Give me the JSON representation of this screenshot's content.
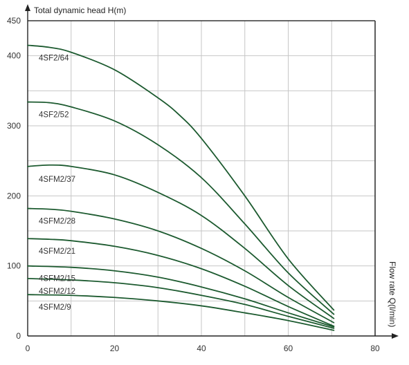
{
  "chart_data": {
    "type": "line",
    "title": "",
    "ylabel": "Total dynamic head H(m)",
    "xlabel": "Flow rate Q(l/min)",
    "xlim": [
      0,
      80
    ],
    "ylim": [
      0,
      450
    ],
    "x_ticks": [
      0,
      20,
      40,
      60,
      80
    ],
    "y_ticks": [
      0,
      100,
      200,
      300,
      400,
      450
    ],
    "grid": true,
    "legend": "none",
    "line_color": "#1c5a2f",
    "series": [
      {
        "name": "4SF2/64",
        "x": [
          0,
          5,
          10,
          20,
          30,
          35,
          40,
          50,
          60,
          70.5
        ],
        "values": [
          415,
          412,
          405,
          380,
          340,
          315,
          282,
          200,
          110,
          37
        ]
      },
      {
        "name": "4SF2/52",
        "x": [
          0,
          5,
          10,
          20,
          30,
          40,
          50,
          60,
          70.5
        ],
        "values": [
          334,
          333,
          327,
          307,
          273,
          226,
          160,
          90,
          31
        ]
      },
      {
        "name": "4SFM2/37",
        "x": [
          0,
          5,
          10,
          20,
          30,
          40,
          50,
          60,
          70.5
        ],
        "values": [
          242,
          244,
          242,
          230,
          205,
          172,
          125,
          72,
          25
        ]
      },
      {
        "name": "4SFM2/28",
        "x": [
          0,
          5,
          10,
          20,
          30,
          40,
          50,
          60,
          70.5
        ],
        "values": [
          182,
          181,
          178,
          167,
          150,
          125,
          93,
          55,
          19
        ]
      },
      {
        "name": "4SFM2/21",
        "x": [
          0,
          5,
          10,
          20,
          30,
          40,
          50,
          60,
          70.5
        ],
        "values": [
          139,
          138,
          136,
          128,
          115,
          96,
          71,
          42,
          14
        ]
      },
      {
        "name": "4SFM2/15",
        "x": [
          0,
          10,
          20,
          30,
          40,
          50,
          60,
          70.5
        ],
        "values": [
          100,
          98,
          93,
          84,
          70,
          53,
          33,
          13
        ]
      },
      {
        "name": "4SFM2/12",
        "x": [
          0,
          10,
          20,
          30,
          40,
          50,
          60,
          70.5
        ],
        "values": [
          82,
          80,
          76,
          69,
          58,
          45,
          28,
          11
        ]
      },
      {
        "name": "4SFM2/9",
        "x": [
          0,
          10,
          20,
          30,
          40,
          50,
          60,
          70.5
        ],
        "values": [
          59,
          58,
          55,
          50,
          43,
          33,
          22,
          8
        ]
      }
    ]
  }
}
